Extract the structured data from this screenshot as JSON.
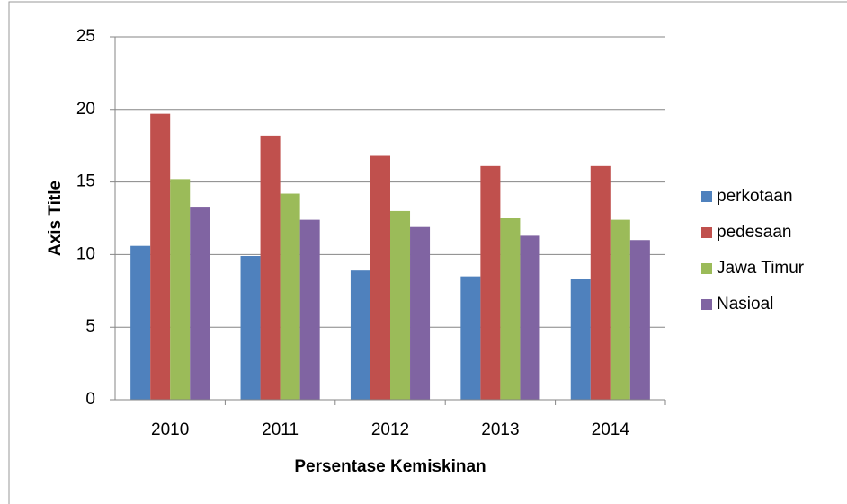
{
  "chart_data": {
    "type": "bar",
    "x_label": "Persentase Kemiskinan",
    "y_label": "Axis Title",
    "categories": [
      "2010",
      "2011",
      "2012",
      "2013",
      "2014"
    ],
    "series": [
      {
        "name": "perkotaan",
        "color": "#4f81bd",
        "values": [
          10.6,
          9.9,
          8.9,
          8.5,
          8.3
        ]
      },
      {
        "name": "pedesaan",
        "color": "#c0504d",
        "values": [
          19.7,
          18.2,
          16.8,
          16.1,
          16.1
        ]
      },
      {
        "name": "Jawa Timur",
        "color": "#9bbb59",
        "values": [
          15.2,
          14.2,
          13.0,
          12.5,
          12.4
        ]
      },
      {
        "name": "Nasioal",
        "color": "#8064a2",
        "values": [
          13.3,
          12.4,
          11.9,
          11.3,
          11.0
        ]
      }
    ],
    "ylim": [
      0,
      25
    ],
    "yticks": [
      0,
      5,
      10,
      15,
      20,
      25
    ],
    "grid": true,
    "legend": "right"
  }
}
